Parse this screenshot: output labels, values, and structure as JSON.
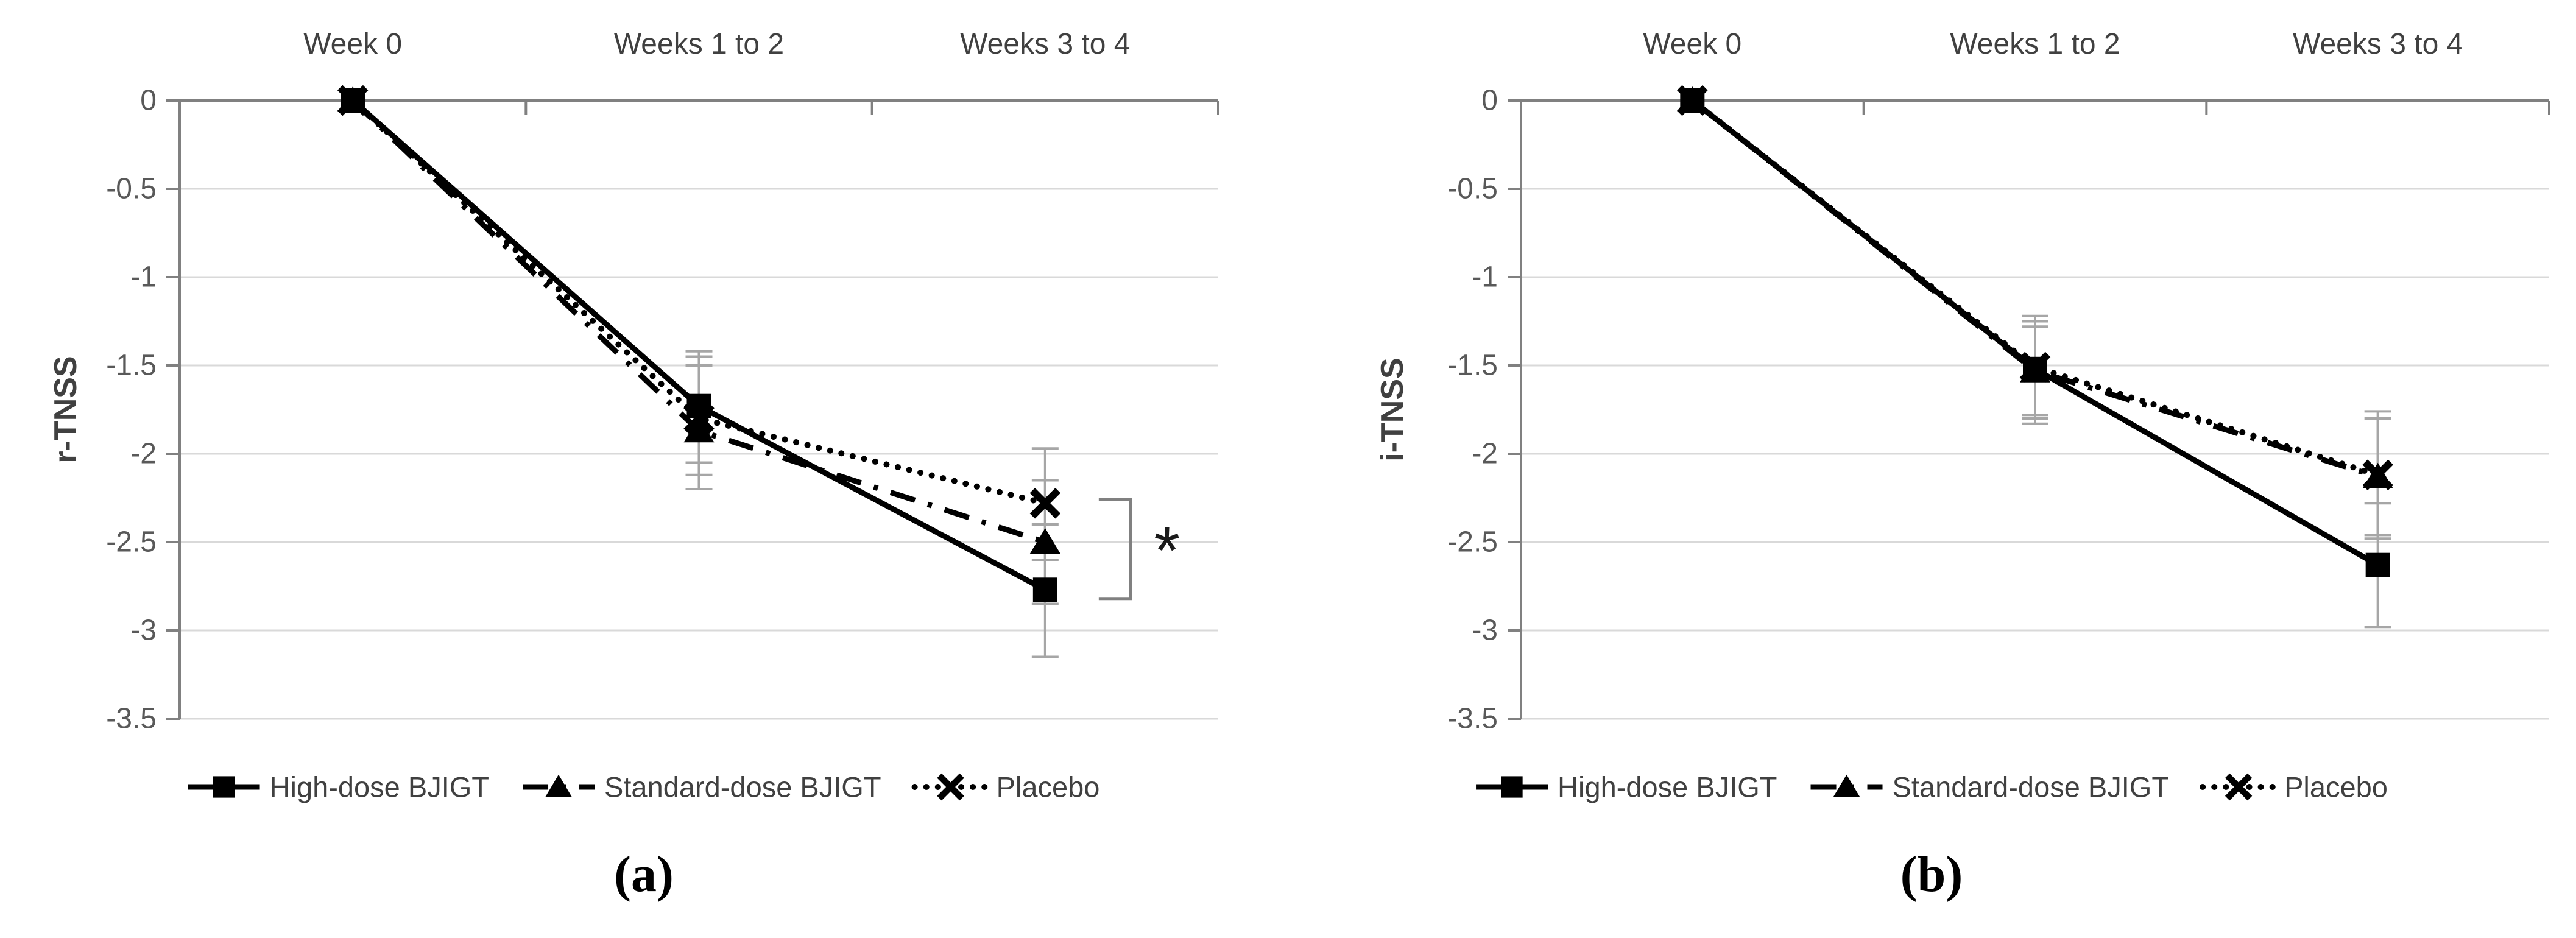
{
  "colors": {
    "series": "#000000",
    "error_bar": "#a6a6a6",
    "gridline": "#d9d9d9",
    "axis": "#808080",
    "tick_label": "#595959",
    "category_label": "#404040",
    "legend_label": "#404040",
    "annotation": "#808080",
    "asterisk": "#1a1a1a",
    "background": "#ffffff"
  },
  "chart_data": [
    {
      "type": "line",
      "panel": "a",
      "caption": "(a)",
      "ylabel": "r-TNSS",
      "xlabel": "",
      "categories": [
        "Week 0",
        "Weeks 1 to 2",
        "Weeks 3 to 4"
      ],
      "yticks": [
        "0",
        "-0.5",
        "-1",
        "-1.5",
        "-2",
        "-2.5",
        "-3",
        "-3.5"
      ],
      "ylim": [
        0,
        -3.5
      ],
      "grid": true,
      "legend_position": "bottom",
      "series": [
        {
          "name": "High-dose BJIGT",
          "marker": "square",
          "line_style": "solid",
          "values": [
            0,
            -1.73,
            -2.77
          ],
          "error_bars": [
            null,
            {
              "top": -1.42,
              "bottom": -2.05
            },
            {
              "top": -2.4,
              "bottom": -3.15
            }
          ]
        },
        {
          "name": "Standard-dose BJIGT",
          "marker": "triangle",
          "line_style": "dashdot",
          "values": [
            0,
            -1.87,
            -2.5
          ],
          "error_bars": [
            null,
            {
              "top": -1.5,
              "bottom": -2.2
            },
            {
              "top": -2.15,
              "bottom": -2.85
            }
          ]
        },
        {
          "name": "Placebo",
          "marker": "x",
          "line_style": "dotted",
          "values": [
            0,
            -1.8,
            -2.28
          ],
          "error_bars": [
            null,
            {
              "top": -1.45,
              "bottom": -2.12
            },
            {
              "top": -1.97,
              "bottom": -2.6
            }
          ]
        }
      ],
      "annotation": {
        "label": "*",
        "category_index": 2,
        "from": -2.26,
        "to": -2.82
      }
    },
    {
      "type": "line",
      "panel": "b",
      "caption": "(b)",
      "ylabel": "i-TNSS",
      "xlabel": "",
      "categories": [
        "Week 0",
        "Weeks 1 to 2",
        "Weeks 3 to 4"
      ],
      "yticks": [
        "0",
        "-0.5",
        "-1",
        "-1.5",
        "-2",
        "-2.5",
        "-3",
        "-3.5"
      ],
      "ylim": [
        0,
        -3.5
      ],
      "grid": true,
      "legend_position": "bottom",
      "series": [
        {
          "name": "High-dose BJIGT",
          "marker": "square",
          "line_style": "solid",
          "values": [
            0,
            -1.52,
            -2.63
          ],
          "error_bars": [
            null,
            {
              "top": -1.22,
              "bottom": -1.83
            },
            {
              "top": -2.28,
              "bottom": -2.98
            }
          ]
        },
        {
          "name": "Standard-dose BJIGT",
          "marker": "triangle",
          "line_style": "dashdot",
          "values": [
            0,
            -1.53,
            -2.13
          ],
          "error_bars": [
            null,
            {
              "top": -1.28,
              "bottom": -1.78
            },
            {
              "top": -1.8,
              "bottom": -2.46
            }
          ]
        },
        {
          "name": "Placebo",
          "marker": "x",
          "line_style": "dotted",
          "values": [
            0,
            -1.51,
            -2.12
          ],
          "error_bars": [
            null,
            {
              "top": -1.25,
              "bottom": -1.8
            },
            {
              "top": -1.76,
              "bottom": -2.48
            }
          ]
        }
      ],
      "annotation": null
    }
  ]
}
